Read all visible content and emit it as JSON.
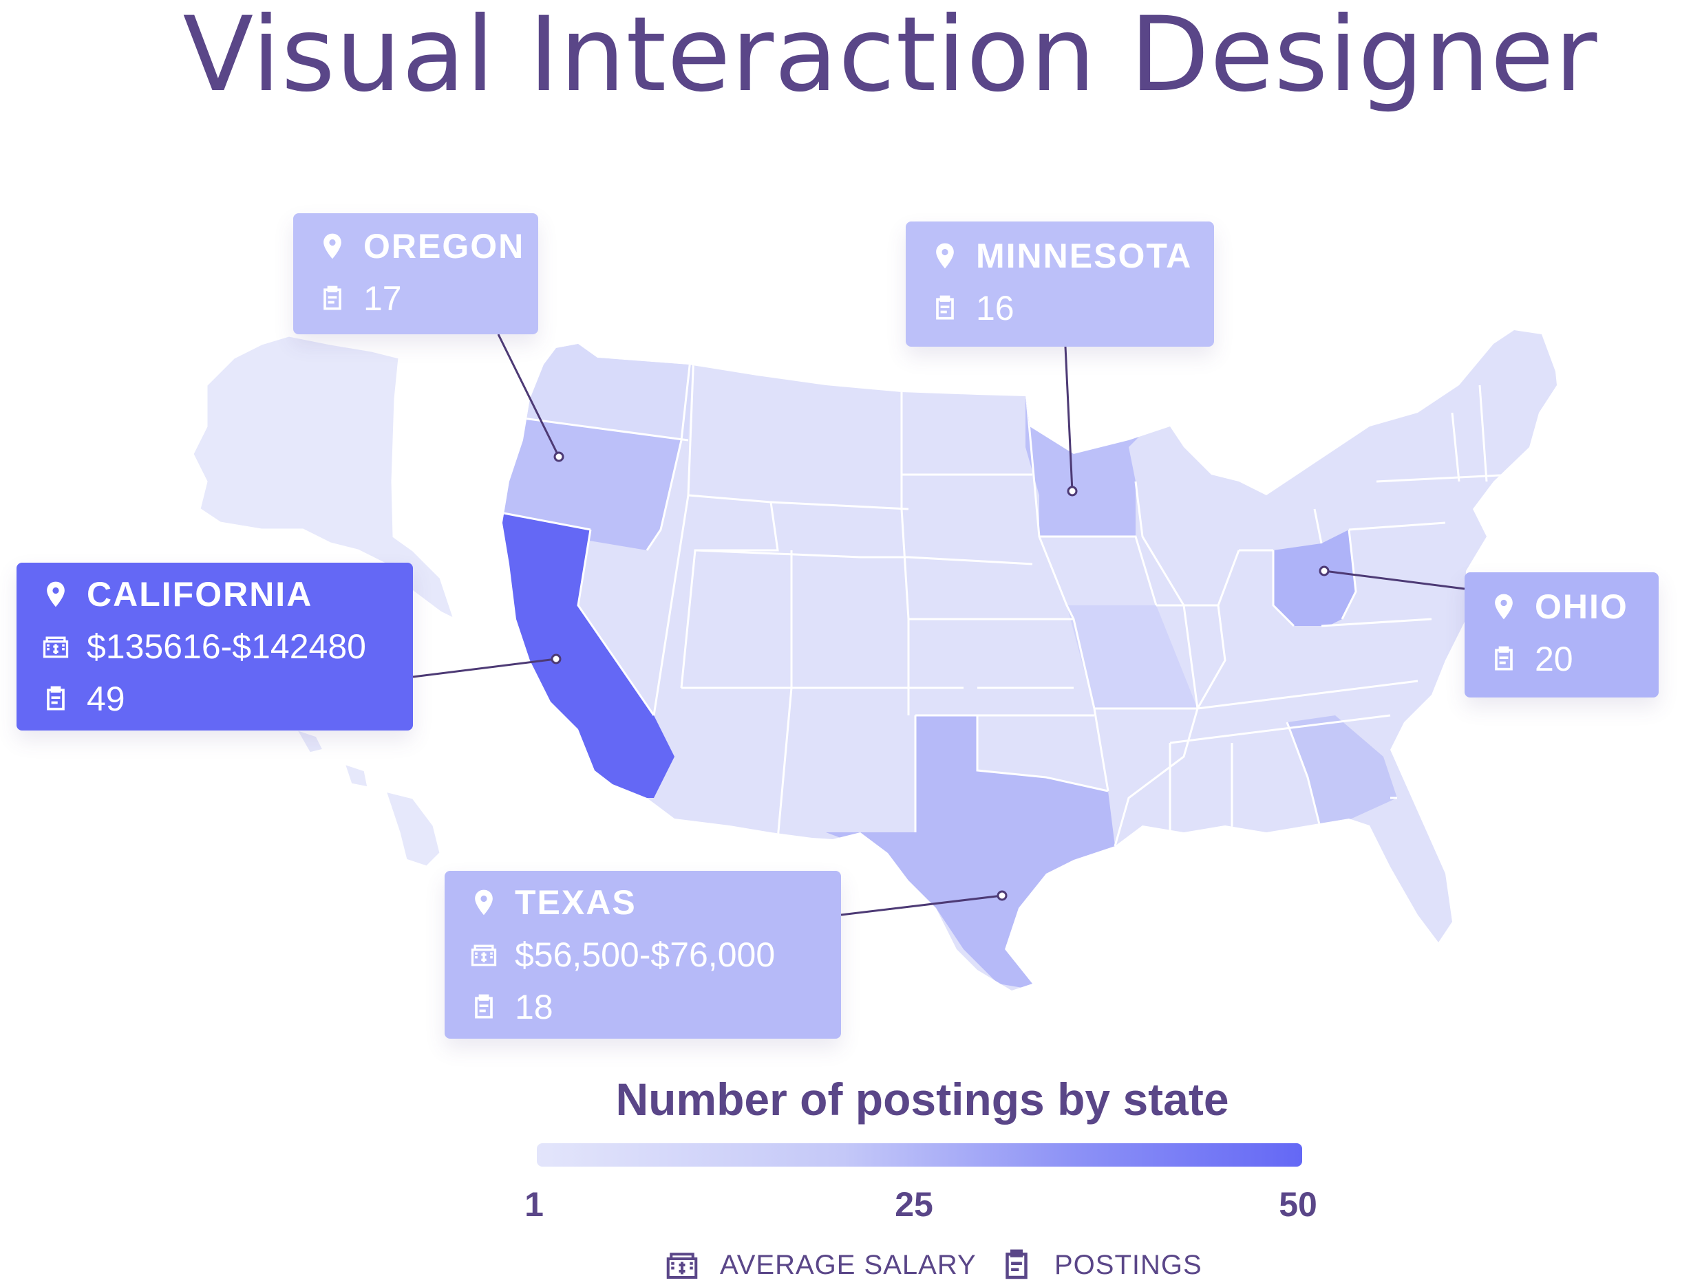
{
  "title": "Visual Interaction Designer",
  "legend": {
    "title": "Number of postings by state",
    "min_label": "1",
    "mid_label": "25",
    "max_label": "50",
    "min": 1,
    "max": 50,
    "color_low": "#e3e5fb",
    "color_high": "#6468f5",
    "salary_key": "AVERAGE SALARY",
    "postings_key": "POSTINGS"
  },
  "states": [
    {
      "state": "California",
      "name": "CALIFORNIA",
      "salary": "$135616-$142480",
      "postings": 49,
      "postings_label": "49",
      "color": "#6468f5"
    },
    {
      "state": "Oregon",
      "name": "OREGON",
      "postings": 17,
      "postings_label": "17",
      "color": "#bcc0f9"
    },
    {
      "state": "Minnesota",
      "name": "MINNESOTA",
      "postings": 16,
      "postings_label": "16",
      "color": "#bcc0f9"
    },
    {
      "state": "Ohio",
      "name": "OHIO",
      "postings": 20,
      "postings_label": "20",
      "color": "#aeb3f8"
    },
    {
      "state": "Texas",
      "name": "TEXAS",
      "salary": "$56,500-$76,000",
      "postings": 18,
      "postings_label": "18",
      "color": "#b6baf8"
    }
  ],
  "colors": {
    "title": "#5a4688",
    "base_state": "#dfe1fa",
    "leader_line": "#4d3a75"
  },
  "icons": {
    "location": "map-pin-icon",
    "salary": "cash-register-icon",
    "postings": "clipboard-icon"
  }
}
